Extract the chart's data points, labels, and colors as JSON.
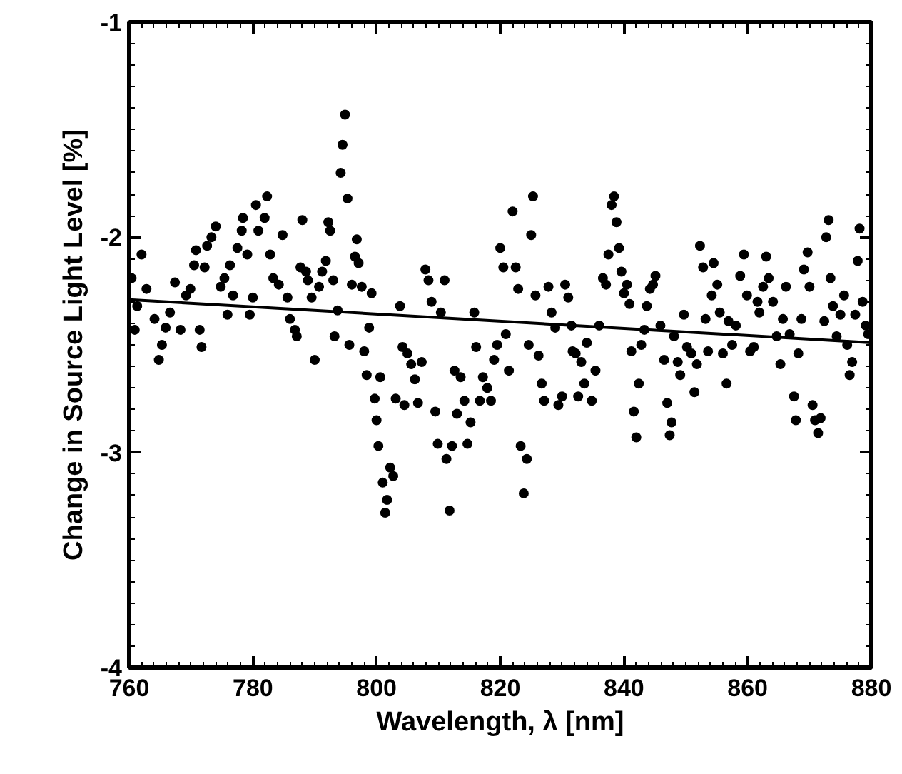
{
  "chart_data": {
    "type": "scatter",
    "xlabel": "Wavelength, λ [nm]",
    "ylabel": "Change in Source Light Level [%]",
    "xlim": [
      760,
      880
    ],
    "xticks": [
      760,
      780,
      800,
      820,
      840,
      860,
      880
    ],
    "ylim": [
      -4,
      -1
    ],
    "yticks": [
      -4,
      -3,
      -2,
      -1
    ],
    "grid": false,
    "series": [
      {
        "color": "#000000",
        "marker": "circle",
        "x": [
          760.4,
          760.9,
          761.3,
          762,
          762.8,
          764.1,
          764.8,
          765.3,
          765.9,
          766.6,
          767.4,
          768.3,
          769.2,
          769.9,
          770.5,
          770.8,
          771.4,
          771.7,
          772.2,
          772.6,
          773.3,
          774,
          774.8,
          775.4,
          775.9,
          776.3,
          776.8,
          777.5,
          778.2,
          778.4,
          779.1,
          779.5,
          780,
          780.5,
          780.9,
          781.9,
          782.3,
          782.8,
          783.3,
          784.2,
          784.8,
          785.6,
          786,
          786.8,
          787.1,
          787.7,
          788,
          788.6,
          788.9,
          789.5,
          790,
          790.7,
          791.2,
          791.8,
          792.2,
          792.5,
          793,
          793.2,
          793.7,
          794.2,
          794.5,
          794.9,
          795.3,
          795.6,
          796,
          796.5,
          796.8,
          797.1,
          797.6,
          798,
          798.4,
          798.8,
          799.2,
          799.7,
          800,
          800.3,
          800.6,
          801,
          801.4,
          801.7,
          802.2,
          802.7,
          803.1,
          803.8,
          804.2,
          804.5,
          805,
          805.6,
          806.2,
          806.7,
          807.3,
          807.9,
          808.4,
          808.9,
          809.5,
          809.9,
          810.4,
          811,
          811.3,
          811.8,
          812.2,
          812.6,
          813,
          813.6,
          814.2,
          814.7,
          815.2,
          815.8,
          816.1,
          816.7,
          817.2,
          817.9,
          818.5,
          819,
          819.5,
          820,
          820.5,
          820.9,
          821.4,
          822,
          822.5,
          822.9,
          823.3,
          823.8,
          824.3,
          824.6,
          825,
          825.3,
          825.7,
          826.2,
          826.7,
          827.1,
          827.8,
          828.3,
          828.9,
          829.4,
          830,
          830.5,
          831,
          831.5,
          831.7,
          832.2,
          832.6,
          833.1,
          833.6,
          834,
          834.8,
          835.4,
          836,
          836.6,
          837.1,
          837.5,
          838,
          838.4,
          838.8,
          839.2,
          839.6,
          840,
          840.5,
          840.9,
          841.2,
          841.6,
          842,
          842.4,
          842.8,
          843.3,
          843.7,
          844.2,
          844.7,
          845.1,
          845.9,
          846.5,
          847,
          847.4,
          847.7,
          848.1,
          848.7,
          849.1,
          849.7,
          850.2,
          850.9,
          851.4,
          851.8,
          852.3,
          852.8,
          853.2,
          853.6,
          854.2,
          854.5,
          855.1,
          855.5,
          856,
          856.6,
          856.9,
          857.5,
          858.1,
          858.8,
          859.4,
          859.9,
          860.4,
          861,
          861.6,
          861.9,
          862.5,
          863,
          863.4,
          864.1,
          864.7,
          865.3,
          865.7,
          866.2,
          866.8,
          867.5,
          867.8,
          868.2,
          868.7,
          869.1,
          869.7,
          870,
          870.5,
          870.9,
          871.4,
          871.8,
          872.4,
          872.7,
          873.1,
          873.4,
          873.8,
          874.4,
          875,
          875.6,
          876.1,
          876.5,
          876.9,
          877.4,
          877.8,
          878.1,
          878.6,
          879.1,
          879.5
        ],
        "values": [
          -2.19,
          -2.43,
          -2.32,
          -2.08,
          -2.24,
          -2.38,
          -2.57,
          -2.5,
          -2.42,
          -2.35,
          -2.21,
          -2.43,
          -2.27,
          -2.24,
          -2.13,
          -2.06,
          -2.43,
          -2.51,
          -2.14,
          -2.04,
          -2.0,
          -1.95,
          -2.23,
          -2.19,
          -2.36,
          -2.13,
          -2.27,
          -2.05,
          -1.97,
          -1.91,
          -2.08,
          -2.36,
          -2.28,
          -1.85,
          -1.97,
          -1.91,
          -1.81,
          -2.08,
          -2.19,
          -2.22,
          -1.99,
          -2.28,
          -2.38,
          -2.43,
          -2.46,
          -2.14,
          -1.92,
          -2.16,
          -2.2,
          -2.28,
          -2.57,
          -2.23,
          -2.16,
          -2.11,
          -1.93,
          -1.97,
          -2.2,
          -2.46,
          -2.34,
          -1.7,
          -1.57,
          -1.43,
          -1.82,
          -2.5,
          -2.22,
          -2.09,
          -2.01,
          -2.12,
          -2.23,
          -2.53,
          -2.64,
          -2.42,
          -2.26,
          -2.75,
          -2.85,
          -2.97,
          -2.65,
          -3.14,
          -3.28,
          -3.22,
          -3.07,
          -3.11,
          -2.75,
          -2.32,
          -2.51,
          -2.78,
          -2.54,
          -2.59,
          -2.66,
          -2.77,
          -2.58,
          -2.15,
          -2.2,
          -2.3,
          -2.81,
          -2.96,
          -2.35,
          -2.2,
          -3.03,
          -3.27,
          -2.97,
          -2.62,
          -2.82,
          -2.65,
          -2.76,
          -2.96,
          -2.86,
          -2.35,
          -2.51,
          -2.76,
          -2.65,
          -2.7,
          -2.76,
          -2.57,
          -2.5,
          -2.05,
          -2.14,
          -2.45,
          -2.62,
          -1.88,
          -2.14,
          -2.24,
          -2.97,
          -3.19,
          -3.03,
          -2.5,
          -1.99,
          -1.81,
          -2.27,
          -2.55,
          -2.68,
          -2.76,
          -2.23,
          -2.35,
          -2.42,
          -2.78,
          -2.74,
          -2.22,
          -2.28,
          -2.41,
          -2.53,
          -2.54,
          -2.74,
          -2.58,
          -2.68,
          -2.49,
          -2.76,
          -2.62,
          -2.41,
          -2.19,
          -2.22,
          -2.08,
          -1.85,
          -1.81,
          -1.93,
          -2.05,
          -2.16,
          -2.26,
          -2.22,
          -2.31,
          -2.53,
          -2.81,
          -2.93,
          -2.68,
          -2.5,
          -2.43,
          -2.32,
          -2.24,
          -2.22,
          -2.18,
          -2.41,
          -2.57,
          -2.77,
          -2.92,
          -2.86,
          -2.46,
          -2.58,
          -2.64,
          -2.36,
          -2.51,
          -2.54,
          -2.72,
          -2.59,
          -2.04,
          -2.14,
          -2.38,
          -2.53,
          -2.27,
          -2.12,
          -2.22,
          -2.35,
          -2.54,
          -2.68,
          -2.39,
          -2.5,
          -2.41,
          -2.18,
          -2.08,
          -2.27,
          -2.53,
          -2.51,
          -2.3,
          -2.35,
          -2.23,
          -2.09,
          -2.19,
          -2.3,
          -2.46,
          -2.59,
          -2.38,
          -2.23,
          -2.45,
          -2.74,
          -2.85,
          -2.54,
          -2.38,
          -2.15,
          -2.07,
          -2.23,
          -2.78,
          -2.85,
          -2.91,
          -2.84,
          -2.39,
          -2.0,
          -1.92,
          -2.19,
          -2.32,
          -2.46,
          -2.36,
          -2.27,
          -2.5,
          -2.64,
          -2.58,
          -2.36,
          -2.11,
          -1.96,
          -2.3,
          -2.41,
          -2.45
        ]
      },
      {
        "type": "line",
        "color": "#000000",
        "line_style": "solid",
        "x": [
          760,
          880
        ],
        "values": [
          -2.29,
          -2.49
        ]
      }
    ]
  }
}
